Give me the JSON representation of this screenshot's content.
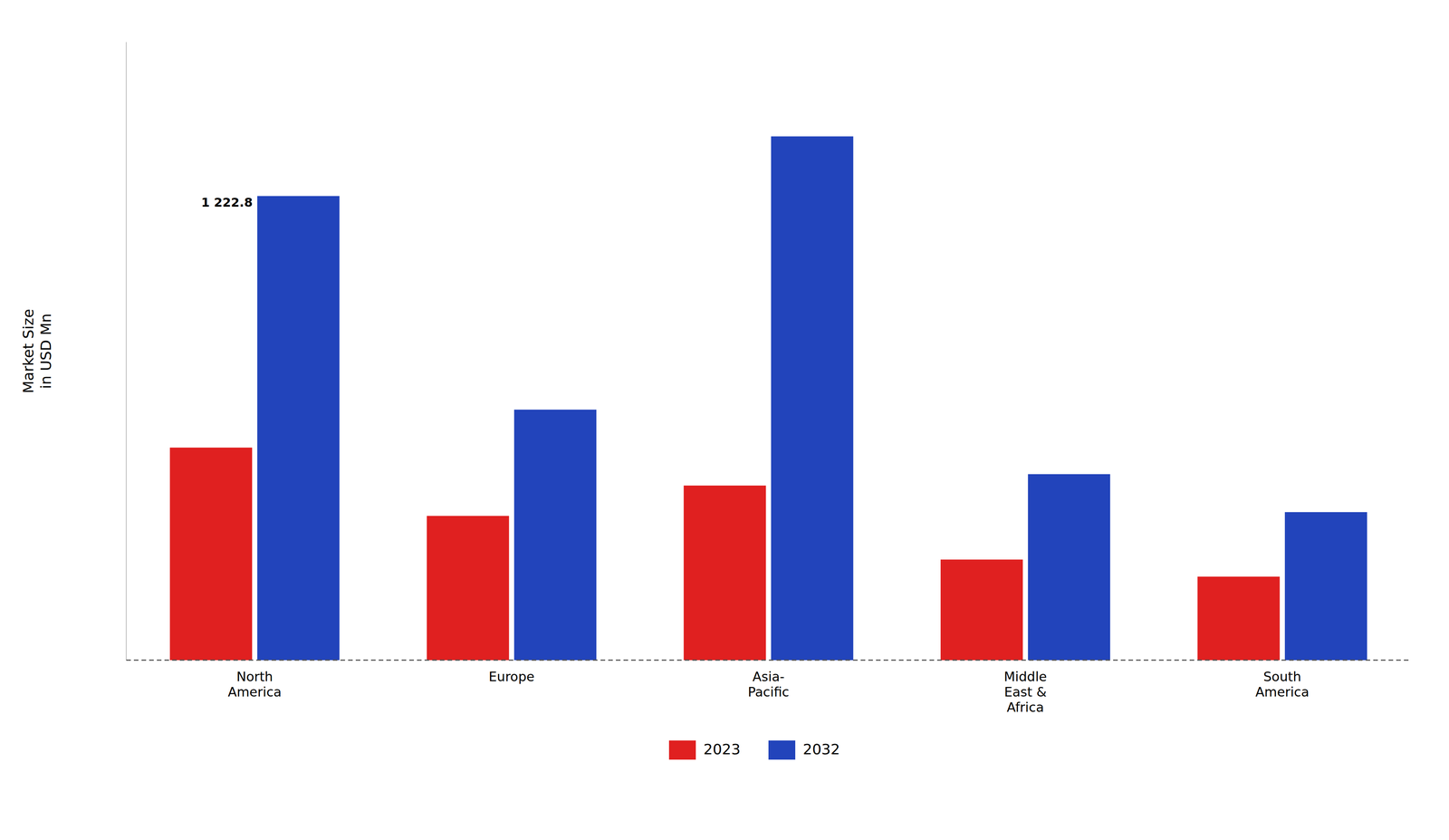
{
  "chart_data": {
    "type": "bar",
    "categories": [
      "North\nAmerica",
      "Europe",
      "Asia-\nPacific",
      "Middle\nEast &\nAfrica",
      "South\nAmerica"
    ],
    "series": [
      {
        "name": "2023",
        "color": "#e02020",
        "values": [
          560,
          380,
          460,
          265,
          220
        ]
      },
      {
        "name": "2032",
        "color": "#2244bb",
        "values": [
          1222.8,
          660,
          1380,
          490,
          390
        ],
        "value_labels": [
          "1 222.8",
          null,
          null,
          null,
          null
        ]
      }
    ],
    "y_label": "Market Size\nin USD Mn",
    "ylim": [
      0,
      1628.4
    ],
    "tick_labels": "x",
    "grid": false,
    "legend": "bottom"
  }
}
